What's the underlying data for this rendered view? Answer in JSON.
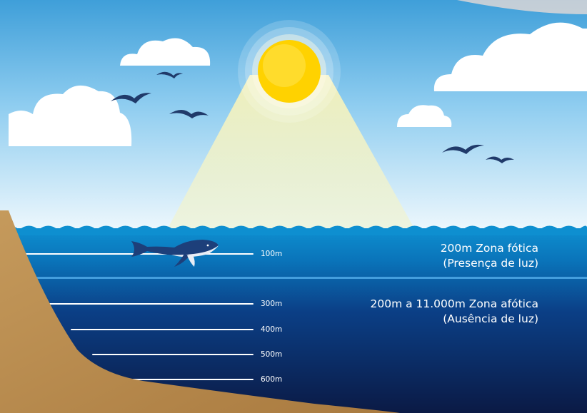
{
  "zones": [
    {
      "line1": "200m Zona fótica",
      "line2": "(Presença de luz)"
    },
    {
      "line1": "200m a 11.000m Zona afótica",
      "line2": "(Ausência de luz)"
    }
  ],
  "depth_markers": [
    "100m",
    "300m",
    "400m",
    "500m",
    "600m"
  ],
  "icons": [
    "sun-icon",
    "cloud-icon",
    "bird-icon",
    "whale-icon",
    "seabed-slope"
  ],
  "colors": {
    "sky_top": "#3f9fd9",
    "sky_bottom": "#f1f9fd",
    "sun": "#ffd200",
    "light_cone": "#f3f2c9",
    "ocean_top": "#0e8fd0",
    "ocean_bottom": "#0b1a45",
    "seabed": "#b98a4e",
    "whale": "#1d3f7a",
    "bird": "#203a6a",
    "text": "#ffffff"
  }
}
